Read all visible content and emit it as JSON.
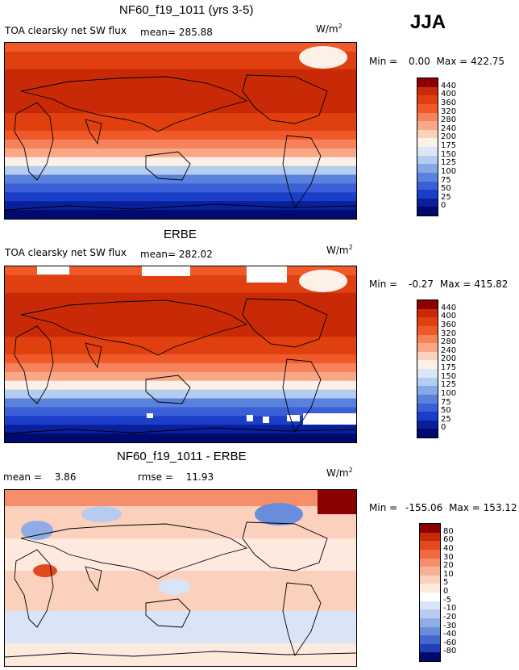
{
  "season": "JJA",
  "panels": [
    {
      "title": "NF60_f19_1011 (yrs 3-5)",
      "variable_label": "TOA clearsky net SW flux",
      "mean_label": "mean=",
      "mean_value": "285.88",
      "units_base": "W/m",
      "units_exp": "2",
      "min_label": "Min =",
      "min_value": "0.00",
      "max_label": "Max =",
      "max_value": "422.75",
      "colorbar_labels": [
        "440",
        "400",
        "360",
        "320",
        "280",
        "240",
        "200",
        "175",
        "150",
        "125",
        "100",
        "75",
        "50",
        "25",
        "0"
      ]
    },
    {
      "title": "ERBE",
      "variable_label": "TOA clearsky net SW flux",
      "mean_label": "mean=",
      "mean_value": "282.02",
      "units_base": "W/m",
      "units_exp": "2",
      "min_label": "Min =",
      "min_value": "-0.27",
      "max_label": "Max =",
      "max_value": "415.82",
      "colorbar_labels": [
        "440",
        "400",
        "360",
        "320",
        "280",
        "240",
        "200",
        "175",
        "150",
        "125",
        "100",
        "75",
        "50",
        "25",
        "0"
      ]
    },
    {
      "title": "NF60_f19_1011 - ERBE",
      "mean_label": "mean =",
      "mean_value": "3.86",
      "rmse_label": "rmse =",
      "rmse_value": "11.93",
      "units_base": "W/m",
      "units_exp": "2",
      "min_label": "Min =",
      "min_value": "-155.06",
      "max_label": "Max =",
      "max_value": "153.12",
      "colorbar_labels": [
        "80",
        "60",
        "40",
        "30",
        "20",
        "10",
        "5",
        "0",
        "-5",
        "-10",
        "-20",
        "-30",
        "-40",
        "-60",
        "-80"
      ]
    }
  ],
  "palette": {
    "abs_colors": [
      "#8b0000",
      "#c82a08",
      "#e0400f",
      "#f05a2a",
      "#f5825a",
      "#f8a887",
      "#fbd1bc",
      "#fdf0e6",
      "#dbe6f7",
      "#b4ccef",
      "#86a8e6",
      "#5a82dc",
      "#3a5fd6",
      "#1a3ec8",
      "#0a1f9c",
      "#000a6e"
    ],
    "diff_colors": [
      "#8b0000",
      "#c82a08",
      "#e04a1e",
      "#f06a40",
      "#f58e6a",
      "#f8b095",
      "#fbd0bd",
      "#fde9de",
      "#ffffff",
      "#d9e4f6",
      "#b6cbee",
      "#8fade4",
      "#6a8ddb",
      "#4468cf",
      "#2040b8",
      "#000a6e"
    ]
  },
  "chart_data": [
    {
      "type": "heatmap",
      "title": "NF60_f19_1011 (yrs 3-5)",
      "variable": "TOA clearsky net SW flux",
      "units": "W/m2",
      "season": "JJA",
      "mean": 285.88,
      "min": 0.0,
      "max": 422.75,
      "contour_levels": [
        0,
        25,
        50,
        75,
        100,
        125,
        150,
        175,
        200,
        240,
        280,
        320,
        360,
        400,
        440
      ]
    },
    {
      "type": "heatmap",
      "title": "ERBE",
      "variable": "TOA clearsky net SW flux",
      "units": "W/m2",
      "season": "JJA",
      "mean": 282.02,
      "min": -0.27,
      "max": 415.82,
      "contour_levels": [
        0,
        25,
        50,
        75,
        100,
        125,
        150,
        175,
        200,
        240,
        280,
        320,
        360,
        400,
        440
      ]
    },
    {
      "type": "heatmap",
      "title": "NF60_f19_1011 - ERBE",
      "units": "W/m2",
      "mean": 3.86,
      "rmse": 11.93,
      "min": -155.06,
      "max": 153.12,
      "contour_levels": [
        -80,
        -60,
        -40,
        -30,
        -20,
        -10,
        -5,
        0,
        5,
        10,
        20,
        30,
        40,
        60,
        80
      ]
    }
  ]
}
